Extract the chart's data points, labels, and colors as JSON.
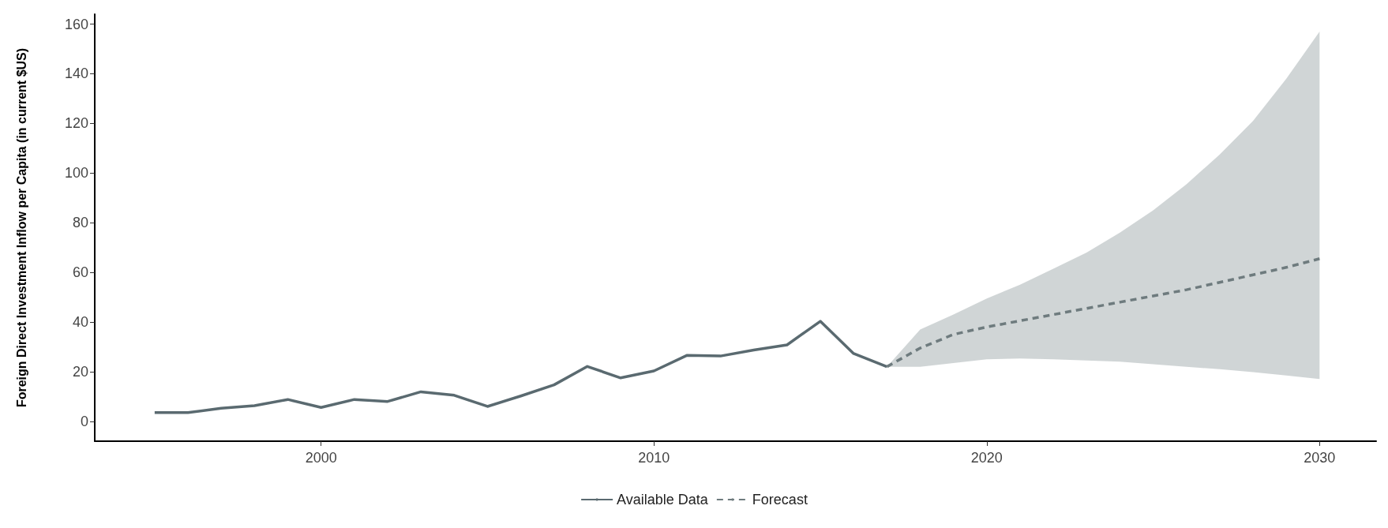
{
  "chart_data": {
    "type": "line",
    "ylabel": "Foreign Direct Investment Inflow per Capita (in current $US)",
    "xlim": [
      1993.2,
      2031.7
    ],
    "xticks": [
      2000,
      2010,
      2020,
      2030
    ],
    "ylim": [
      -8,
      164
    ],
    "yticks": [
      0,
      20,
      40,
      60,
      80,
      100,
      120,
      140,
      160
    ],
    "grid": false,
    "legend": "bottom",
    "marker": "none",
    "series": [
      {
        "name": "Available Data",
        "color": "#5a6a70",
        "line_style": "solid",
        "x": [
          1995,
          1996,
          1997,
          1998,
          1999,
          2000,
          2001,
          2002,
          2003,
          2004,
          2005,
          2006,
          2007,
          2008,
          2009,
          2010,
          2011,
          2012,
          2013,
          2014,
          2015,
          2016,
          2017
        ],
        "values": [
          3.5,
          3.5,
          5.3,
          6.3,
          8.8,
          5.6,
          8.8,
          8,
          11.9,
          10.5,
          6,
          10.2,
          14.7,
          22.1,
          17.5,
          20.3,
          26.6,
          26.3,
          28.7,
          30.8,
          40.3,
          27.3,
          22
        ]
      },
      {
        "name": "Forecast",
        "color": "#6e7b7e",
        "line_style": "dashed",
        "x": [
          2017,
          2018,
          2019,
          2020,
          2021,
          2022,
          2023,
          2024,
          2025,
          2026,
          2027,
          2028,
          2029,
          2030
        ],
        "values": [
          22,
          29.5,
          35,
          38,
          40.5,
          43,
          45.5,
          48,
          50.5,
          53,
          56,
          59,
          62,
          65.5
        ],
        "lower": [
          22,
          22,
          23.5,
          25,
          25.3,
          25,
          24.5,
          24,
          23,
          22,
          21,
          19.8,
          18.5,
          17
        ],
        "upper": [
          22,
          37,
          43,
          49.5,
          55,
          61.5,
          68,
          76,
          85,
          95.5,
          107.5,
          121,
          138,
          157
        ]
      }
    ]
  }
}
